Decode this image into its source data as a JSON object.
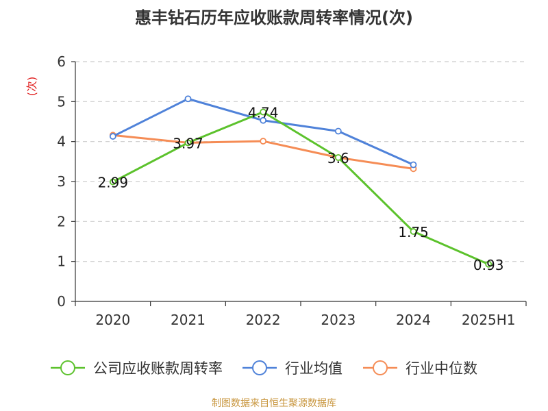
{
  "title": "惠丰钻石历年应收账款周转率情况(次)",
  "source": "制图数据来自恒生聚源数据库",
  "chart_data": {
    "type": "line",
    "ylabel": "(次)",
    "ylim": [
      0,
      6
    ],
    "yticks": [
      "0",
      "1",
      "2",
      "3",
      "4",
      "5",
      "6"
    ],
    "categories": [
      "2020",
      "2021",
      "2022",
      "2023",
      "2024",
      "2025H1"
    ],
    "grid": true,
    "legend_position": "bottom",
    "series": [
      {
        "name": "公司应收账款周转率",
        "color": "#5cc22c",
        "values": [
          2.99,
          3.97,
          4.74,
          3.6,
          1.75,
          0.93
        ],
        "labels": [
          "2.99",
          "3.97",
          "4.74",
          "3.6",
          "1.75",
          "0.93"
        ]
      },
      {
        "name": "行业均值",
        "color": "#4f82d9",
        "values": [
          4.13,
          5.07,
          4.53,
          4.26,
          3.42,
          null
        ]
      },
      {
        "name": "行业中位数",
        "color": "#f58c55",
        "values": [
          4.16,
          3.97,
          4.01,
          3.6,
          3.32,
          null
        ]
      }
    ]
  }
}
